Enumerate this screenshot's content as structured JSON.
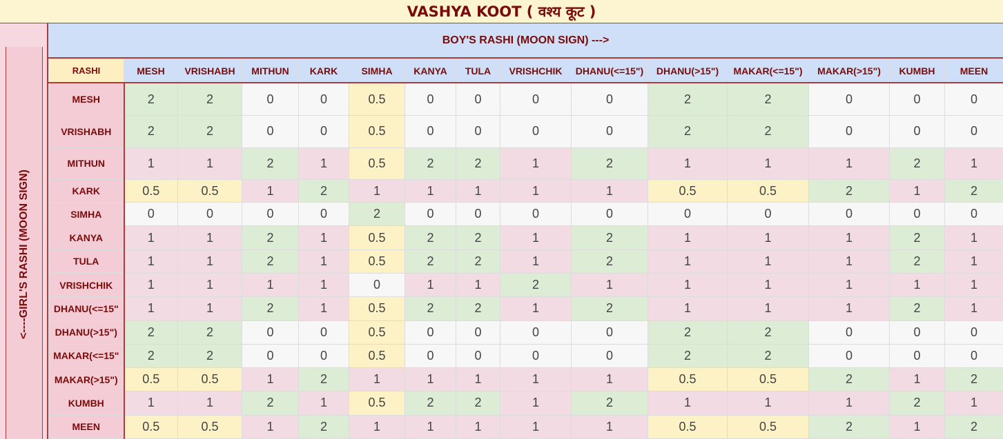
{
  "title": "VASHYA KOOT ( वश्य कूट )",
  "boy_header": "BOY'S RASHI (MOON SIGN) --->",
  "girl_header": "<----GIRL'S RASHI (MOON SIGN)",
  "corner_label": "RASHI",
  "columns": [
    "MESH",
    "VRISHABH",
    "MITHUN",
    "KARK",
    "SIMHA",
    "KANYA",
    "TULA",
    "VRISHCHIK",
    "DHANU(<=15\")",
    "DHANU(>15\")",
    "MAKAR(<=15\")",
    "MAKAR(>15\")",
    "KUMBH",
    "MEEN"
  ],
  "rows": [
    {
      "label": "MESH",
      "values": [
        "2",
        "2",
        "0",
        "0",
        "0.5",
        "0",
        "0",
        "0",
        "0",
        "2",
        "2",
        "0",
        "0",
        "0"
      ]
    },
    {
      "label": "VRISHABH",
      "values": [
        "2",
        "2",
        "0",
        "0",
        "0.5",
        "0",
        "0",
        "0",
        "0",
        "2",
        "2",
        "0",
        "0",
        "0"
      ]
    },
    {
      "label": "MITHUN",
      "values": [
        "1",
        "1",
        "2",
        "1",
        "0.5",
        "2",
        "2",
        "1",
        "2",
        "1",
        "1",
        "1",
        "2",
        "1"
      ]
    },
    {
      "label": "KARK",
      "values": [
        "0.5",
        "0.5",
        "1",
        "2",
        "1",
        "1",
        "1",
        "1",
        "1",
        "0.5",
        "0.5",
        "2",
        "1",
        "2"
      ]
    },
    {
      "label": "SIMHA",
      "values": [
        "0",
        "0",
        "0",
        "0",
        "2",
        "0",
        "0",
        "0",
        "0",
        "0",
        "0",
        "0",
        "0",
        "0"
      ]
    },
    {
      "label": "KANYA",
      "values": [
        "1",
        "1",
        "2",
        "1",
        "0.5",
        "2",
        "2",
        "1",
        "2",
        "1",
        "1",
        "1",
        "2",
        "1"
      ]
    },
    {
      "label": "TULA",
      "values": [
        "1",
        "1",
        "2",
        "1",
        "0.5",
        "2",
        "2",
        "1",
        "2",
        "1",
        "1",
        "1",
        "2",
        "1"
      ]
    },
    {
      "label": "VRISHCHIK",
      "values": [
        "1",
        "1",
        "1",
        "1",
        "0",
        "1",
        "1",
        "2",
        "1",
        "1",
        "1",
        "1",
        "1",
        "1"
      ]
    },
    {
      "label": "DHANU(<=15\"",
      "values": [
        "1",
        "1",
        "2",
        "1",
        "0.5",
        "2",
        "2",
        "1",
        "2",
        "1",
        "1",
        "1",
        "2",
        "1"
      ]
    },
    {
      "label": "DHANU(>15\")",
      "values": [
        "2",
        "2",
        "0",
        "0",
        "0.5",
        "0",
        "0",
        "0",
        "0",
        "2",
        "2",
        "0",
        "0",
        "0"
      ]
    },
    {
      "label": "MAKAR(<=15\"",
      "values": [
        "2",
        "2",
        "0",
        "0",
        "0.5",
        "0",
        "0",
        "0",
        "0",
        "2",
        "2",
        "0",
        "0",
        "0"
      ]
    },
    {
      "label": "MAKAR(>15\")",
      "values": [
        "0.5",
        "0.5",
        "1",
        "2",
        "1",
        "1",
        "1",
        "1",
        "1",
        "0.5",
        "0.5",
        "2",
        "1",
        "2"
      ]
    },
    {
      "label": "KUMBH",
      "values": [
        "1",
        "1",
        "2",
        "1",
        "0.5",
        "2",
        "2",
        "1",
        "2",
        "1",
        "1",
        "1",
        "2",
        "1"
      ]
    },
    {
      "label": "MEEN",
      "values": [
        "0.5",
        "0.5",
        "1",
        "2",
        "1",
        "1",
        "1",
        "1",
        "1",
        "0.5",
        "0.5",
        "2",
        "1",
        "2"
      ]
    }
  ],
  "cell_colors": {
    "2": "#dcecd5",
    "1": "#f3dbe3",
    "0.5": "#fdf2c6",
    "0": "#f7f7f7"
  }
}
